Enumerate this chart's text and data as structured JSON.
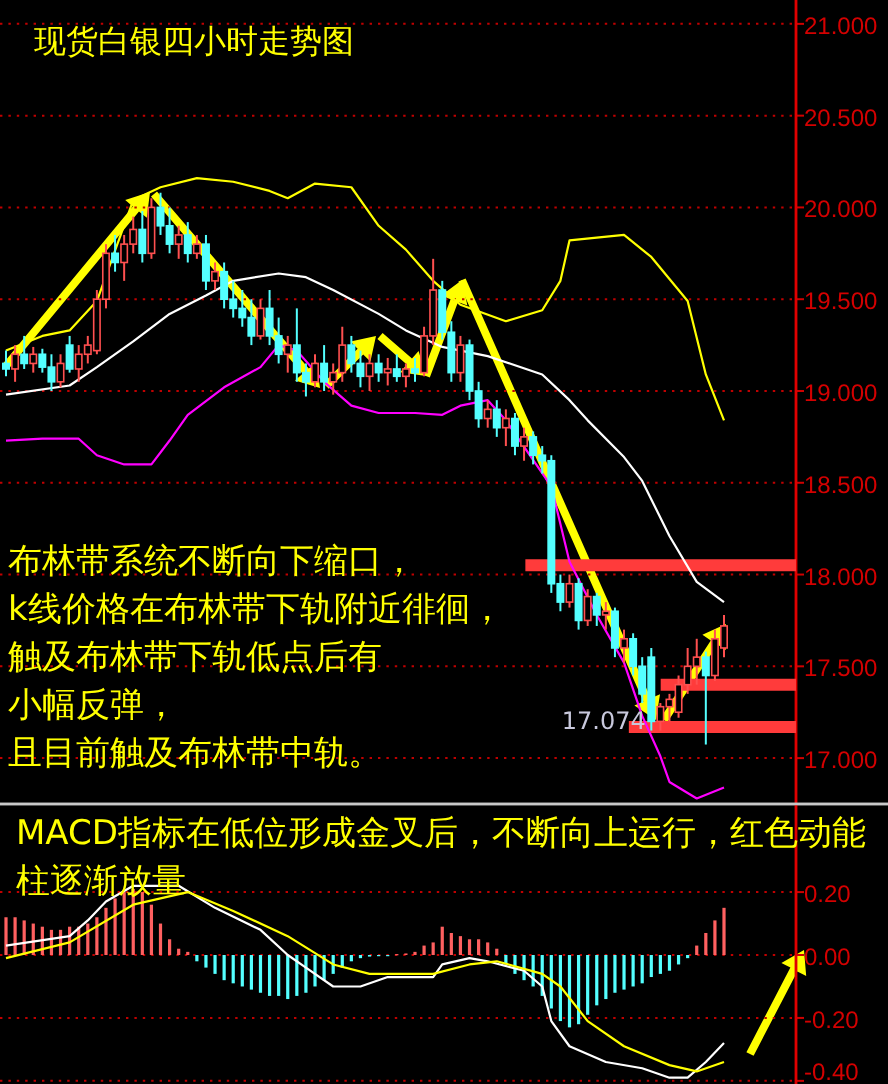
{
  "chart_data": [
    {
      "type": "candlestick",
      "title": "现货白银四小时走势图",
      "categories": [
        null,
        null,
        null,
        null,
        null,
        null,
        null,
        null,
        null,
        null,
        null,
        null,
        null,
        null,
        null,
        null,
        null,
        null,
        null,
        null,
        null,
        null,
        null,
        null,
        null,
        null,
        null,
        null,
        null,
        null,
        null,
        null,
        null,
        null,
        null,
        null,
        null,
        null,
        null,
        null,
        null,
        null,
        null,
        null,
        null,
        null,
        null,
        null,
        null,
        null,
        null,
        null,
        null,
        null,
        null,
        null,
        null,
        null,
        null,
        null,
        null,
        null,
        null,
        null,
        null,
        null,
        null,
        null,
        null,
        null,
        null,
        null,
        null,
        null,
        null,
        null,
        null,
        null,
        null,
        null
      ],
      "ohlc": [
        [
          19.15,
          19.22,
          19.08,
          19.12
        ],
        [
          19.12,
          19.25,
          19.05,
          19.2
        ],
        [
          19.2,
          19.3,
          19.12,
          19.15
        ],
        [
          19.15,
          19.24,
          19.1,
          19.2
        ],
        [
          19.2,
          19.23,
          19.1,
          19.13
        ],
        [
          19.13,
          19.2,
          19.0,
          19.05
        ],
        [
          19.05,
          19.2,
          19.02,
          19.15
        ],
        [
          19.25,
          19.3,
          19.1,
          19.12
        ],
        [
          19.12,
          19.25,
          19.05,
          19.2
        ],
        [
          19.2,
          19.3,
          19.15,
          19.25
        ],
        [
          19.22,
          19.55,
          19.2,
          19.5
        ],
        [
          19.5,
          19.8,
          19.45,
          19.75
        ],
        [
          19.75,
          19.85,
          19.65,
          19.7
        ],
        [
          19.7,
          19.85,
          19.6,
          19.8
        ],
        [
          19.8,
          19.95,
          19.75,
          19.88
        ],
        [
          19.88,
          19.98,
          19.7,
          19.75
        ],
        [
          19.75,
          20.05,
          19.72,
          20.0
        ],
        [
          20.0,
          20.08,
          19.85,
          19.9
        ],
        [
          19.9,
          20.0,
          19.75,
          19.8
        ],
        [
          19.8,
          19.9,
          19.72,
          19.85
        ],
        [
          19.85,
          19.92,
          19.7,
          19.75
        ],
        [
          19.75,
          19.85,
          19.72,
          19.8
        ],
        [
          19.8,
          19.85,
          19.55,
          19.6
        ],
        [
          19.6,
          19.7,
          19.55,
          19.65
        ],
        [
          19.65,
          19.7,
          19.45,
          19.5
        ],
        [
          19.5,
          19.6,
          19.4,
          19.45
        ],
        [
          19.45,
          19.55,
          19.35,
          19.4
        ],
        [
          19.4,
          19.5,
          19.25,
          19.3
        ],
        [
          19.3,
          19.5,
          19.28,
          19.45
        ],
        [
          19.45,
          19.55,
          19.25,
          19.3
        ],
        [
          19.3,
          19.4,
          19.15,
          19.2
        ],
        [
          19.2,
          19.3,
          19.1,
          19.25
        ],
        [
          19.25,
          19.45,
          19.05,
          19.1
        ],
        [
          19.1,
          19.15,
          18.97,
          19.05
        ],
        [
          19.05,
          19.2,
          19.02,
          19.15
        ],
        [
          19.15,
          19.25,
          19.0,
          19.05
        ],
        [
          19.05,
          19.15,
          18.98,
          19.1
        ],
        [
          19.1,
          19.35,
          19.05,
          19.25
        ],
        [
          19.25,
          19.3,
          19.1,
          19.15
        ],
        [
          19.15,
          19.22,
          19.02,
          19.08
        ],
        [
          19.08,
          19.2,
          19.0,
          19.15
        ],
        [
          19.15,
          19.2,
          19.05,
          19.1
        ],
        [
          19.1,
          19.18,
          19.03,
          19.12
        ],
        [
          19.12,
          19.2,
          19.05,
          19.08
        ],
        [
          19.08,
          19.15,
          19.02,
          19.12
        ],
        [
          19.12,
          19.18,
          19.05,
          19.1
        ],
        [
          19.1,
          19.35,
          19.08,
          19.3
        ],
        [
          19.3,
          19.72,
          19.25,
          19.55
        ],
        [
          19.55,
          19.6,
          19.28,
          19.32
        ],
        [
          19.32,
          19.38,
          19.05,
          19.1
        ],
        [
          19.1,
          19.3,
          19.05,
          19.25
        ],
        [
          19.25,
          19.28,
          18.95,
          19.0
        ],
        [
          19.0,
          19.05,
          18.8,
          18.85
        ],
        [
          18.85,
          18.95,
          18.8,
          18.9
        ],
        [
          18.9,
          18.95,
          18.75,
          18.8
        ],
        [
          18.8,
          18.9,
          18.7,
          18.85
        ],
        [
          18.85,
          18.88,
          18.65,
          18.7
        ],
        [
          18.7,
          18.8,
          18.62,
          18.75
        ],
        [
          18.75,
          18.78,
          18.6,
          18.65
        ],
        [
          18.65,
          18.7,
          18.55,
          18.62
        ],
        [
          18.62,
          18.65,
          17.9,
          17.95
        ],
        [
          17.95,
          18.0,
          17.8,
          17.85
        ],
        [
          17.85,
          18.0,
          17.82,
          17.95
        ],
        [
          17.95,
          17.98,
          17.7,
          17.75
        ],
        [
          17.75,
          17.92,
          17.72,
          17.88
        ],
        [
          17.88,
          17.9,
          17.72,
          17.78
        ],
        [
          17.78,
          17.85,
          17.7,
          17.8
        ],
        [
          17.8,
          17.82,
          17.55,
          17.6
        ],
        [
          17.6,
          17.7,
          17.52,
          17.65
        ],
        [
          17.65,
          17.68,
          17.45,
          17.5
        ],
        [
          17.5,
          17.55,
          17.3,
          17.35
        ],
        [
          17.55,
          17.6,
          17.15,
          17.2
        ],
        [
          17.2,
          17.3,
          17.15,
          17.28
        ],
        [
          17.28,
          17.35,
          17.2,
          17.32
        ],
        [
          17.25,
          17.45,
          17.22,
          17.4
        ],
        [
          17.4,
          17.6,
          17.35,
          17.5
        ],
        [
          17.5,
          17.65,
          17.4,
          17.55
        ],
        [
          17.55,
          17.58,
          17.074,
          17.45
        ],
        [
          17.45,
          17.7,
          17.42,
          17.65
        ],
        [
          17.6,
          17.78,
          17.55,
          17.72
        ]
      ],
      "series": [
        {
          "type": "line",
          "color": "#ffff00",
          "values": [
            19.22,
            null,
            null,
            null,
            19.3,
            null,
            null,
            19.33,
            null,
            null,
            19.49,
            null,
            null,
            null,
            20.04,
            null,
            null,
            20.11,
            null,
            null,
            null,
            20.16,
            null,
            null,
            null,
            20.14,
            null,
            null,
            null,
            20.09,
            null,
            20.05,
            null,
            null,
            20.13,
            null,
            null,
            null,
            20.11,
            null,
            null,
            19.9,
            null,
            null,
            19.77,
            null,
            null,
            19.6,
            null,
            null,
            19.47,
            null,
            null,
            null,
            null,
            19.38,
            null,
            null,
            null,
            19.44,
            null,
            19.6,
            19.82,
            null,
            null,
            null,
            null,
            null,
            19.85,
            null,
            null,
            19.73,
            null,
            null,
            null,
            19.49,
            null,
            19.09,
            null,
            18.84
          ]
        },
        {
          "type": "line",
          "color": "#ffffff",
          "values": [
            18.98,
            null,
            null,
            null,
            null,
            null,
            null,
            19.03,
            null,
            null,
            19.13,
            null,
            null,
            null,
            19.27,
            null,
            null,
            null,
            19.42,
            null,
            null,
            null,
            19.52,
            null,
            null,
            19.6,
            null,
            null,
            null,
            null,
            19.64,
            null,
            null,
            19.62,
            null,
            null,
            19.55,
            null,
            null,
            null,
            null,
            19.42,
            null,
            null,
            19.33,
            null,
            null,
            null,
            19.24,
            null,
            null,
            null,
            null,
            19.19,
            null,
            null,
            null,
            null,
            null,
            19.09,
            null,
            null,
            18.95,
            null,
            18.84,
            null,
            null,
            null,
            18.64,
            null,
            18.51,
            null,
            null,
            18.21,
            null,
            null,
            17.96,
            null,
            null,
            17.85
          ]
        },
        {
          "type": "line",
          "color": "#ff00ff",
          "values": [
            18.73,
            null,
            null,
            null,
            18.74,
            null,
            null,
            null,
            18.74,
            null,
            18.65,
            null,
            null,
            18.6,
            null,
            null,
            18.6,
            null,
            18.73,
            null,
            18.87,
            null,
            null,
            null,
            19.02,
            null,
            null,
            null,
            19.13,
            null,
            19.25,
            null,
            19.22,
            null,
            null,
            19.05,
            null,
            null,
            18.92,
            null,
            null,
            18.88,
            null,
            null,
            null,
            18.88,
            null,
            null,
            18.87,
            null,
            18.92,
            null,
            null,
            18.95,
            null,
            18.84,
            null,
            null,
            null,
            null,
            18.48,
            null,
            18.07,
            null,
            null,
            17.78,
            null,
            null,
            17.52,
            null,
            17.23,
            null,
            17.01,
            16.87,
            null,
            null,
            16.78,
            null,
            null,
            16.84
          ]
        }
      ],
      "ylim": [
        16.75,
        21.13
      ],
      "yticks": [
        {
          "value": 17,
          "label": "17.000"
        },
        {
          "value": 17.5,
          "label": "17.500"
        },
        {
          "value": 18,
          "label": "18.000"
        },
        {
          "value": 18.5,
          "label": "18.500"
        },
        {
          "value": 19,
          "label": "19.000"
        },
        {
          "value": 19.5,
          "label": "19.500"
        },
        {
          "value": 20,
          "label": "20.000"
        },
        {
          "value": 20.5,
          "label": "20.500"
        },
        {
          "value": 21,
          "label": "21.000"
        }
      ],
      "grid": "y",
      "tick_labels": "y",
      "ref_lines": [
        {
          "axis": "y",
          "value": 18.05,
          "color": "#ff3b3b"
        },
        {
          "axis": "y",
          "value": 17.4,
          "color": "#ff3b3b"
        },
        {
          "axis": "y",
          "value": 17.17,
          "color": "#ff3b3b"
        }
      ],
      "annotations": [
        "布林带系统不断向下缩口，",
        "k线价格在布林带下轨附近徘徊，",
        "触及布林带下轨低点后有",
        "小幅反弹，",
        "且目前触及布林带中轨。",
        "17.074"
      ]
    },
    {
      "type": "bar",
      "categories": [
        null,
        null,
        null,
        null,
        null,
        null,
        null,
        null,
        null,
        null,
        null,
        null,
        null,
        null,
        null,
        null,
        null,
        null,
        null,
        null,
        null,
        null,
        null,
        null,
        null,
        null,
        null,
        null,
        null,
        null,
        null,
        null,
        null,
        null,
        null,
        null,
        null,
        null,
        null,
        null,
        null,
        null,
        null,
        null,
        null,
        null,
        null,
        null,
        null,
        null,
        null,
        null,
        null,
        null,
        null,
        null,
        null,
        null,
        null,
        null,
        null,
        null,
        null,
        null,
        null,
        null,
        null,
        null,
        null,
        null,
        null,
        null,
        null,
        null,
        null,
        null,
        null,
        null,
        null,
        null
      ],
      "series": [
        {
          "type": "bar",
          "color": "#ff6060",
          "values": [
            0.12,
            0.12,
            0.11,
            0.1,
            0.09,
            0.08,
            0.08,
            0.09,
            0.09,
            0.1,
            0.12,
            0.15,
            0.18,
            0.2,
            0.21,
            0.2,
            0.16,
            0.1,
            0.05,
            0.02,
            0.01,
            null,
            null,
            null,
            null,
            null,
            null,
            null,
            null,
            null,
            null,
            null,
            null,
            null,
            null,
            null,
            null,
            null,
            null,
            null,
            null,
            null,
            null,
            0.003,
            0.005,
            0.01,
            0.03,
            0.04,
            0.09,
            0.07,
            0.06,
            0.05,
            0.05,
            0.04,
            0.02,
            null,
            null,
            null,
            null,
            null,
            null,
            null,
            null,
            null,
            null,
            null,
            null,
            null,
            null,
            null,
            null,
            null,
            null,
            null,
            null,
            null,
            0.03,
            0.07,
            0.11,
            0.15
          ]
        },
        {
          "type": "bar",
          "color": "#54ffff",
          "values": [
            null,
            null,
            null,
            null,
            null,
            null,
            null,
            null,
            null,
            null,
            null,
            null,
            null,
            null,
            null,
            null,
            null,
            null,
            null,
            null,
            null,
            -0.02,
            -0.04,
            -0.06,
            -0.08,
            -0.09,
            -0.1,
            -0.11,
            -0.12,
            -0.13,
            -0.13,
            -0.14,
            -0.13,
            -0.12,
            -0.1,
            -0.08,
            -0.06,
            -0.04,
            -0.02,
            -0.01,
            -0.005,
            -0.003,
            -0.002,
            null,
            null,
            null,
            null,
            null,
            null,
            null,
            null,
            null,
            null,
            null,
            null,
            -0.03,
            -0.06,
            -0.08,
            -0.1,
            -0.13,
            -0.17,
            -0.21,
            -0.23,
            -0.22,
            -0.19,
            -0.16,
            -0.14,
            -0.12,
            -0.11,
            -0.1,
            -0.09,
            -0.07,
            -0.06,
            -0.05,
            -0.03,
            -0.01,
            null,
            null,
            null,
            null
          ]
        },
        {
          "type": "line",
          "color": "#ffffff",
          "values": [
            0.03,
            null,
            null,
            null,
            null,
            null,
            null,
            0.06,
            null,
            0.11,
            null,
            0.17,
            null,
            null,
            0.22,
            null,
            null,
            null,
            null,
            0.22,
            null,
            null,
            null,
            0.15,
            null,
            null,
            null,
            null,
            0.08,
            null,
            null,
            0.0,
            null,
            -0.04,
            null,
            null,
            -0.1,
            null,
            null,
            -0.1,
            null,
            null,
            -0.07,
            null,
            null,
            null,
            null,
            -0.07,
            -0.03,
            null,
            null,
            -0.01,
            null,
            -0.02,
            null,
            null,
            null,
            -0.05,
            null,
            -0.1,
            -0.21,
            null,
            -0.29,
            null,
            null,
            null,
            -0.34,
            null,
            null,
            null,
            -0.36,
            null,
            null,
            -0.39,
            null,
            -0.39,
            null,
            -0.34,
            null,
            -0.28
          ]
        },
        {
          "type": "line",
          "color": "#ffff00",
          "values": [
            -0.01,
            null,
            null,
            null,
            null,
            null,
            null,
            0.04,
            null,
            null,
            null,
            null,
            null,
            null,
            0.16,
            null,
            null,
            null,
            null,
            null,
            0.2,
            null,
            null,
            null,
            null,
            0.14,
            null,
            null,
            null,
            null,
            null,
            0.06,
            null,
            null,
            null,
            null,
            -0.03,
            null,
            null,
            null,
            -0.06,
            null,
            null,
            null,
            null,
            null,
            null,
            -0.06,
            null,
            null,
            null,
            -0.03,
            null,
            null,
            -0.02,
            null,
            null,
            null,
            null,
            -0.06,
            null,
            -0.1,
            null,
            null,
            -0.21,
            null,
            null,
            null,
            -0.29,
            null,
            null,
            null,
            null,
            -0.35,
            null,
            null,
            -0.37,
            null,
            null,
            -0.34
          ]
        }
      ],
      "ylim": [
        -0.41,
        0.48
      ],
      "yticks": [
        {
          "value": 0.2,
          "label": "0.20"
        },
        {
          "value": 0,
          "label": "0.00"
        },
        {
          "value": -0.2,
          "label": "-0.20"
        },
        {
          "value": -0.4,
          "label": "-0.40"
        }
      ],
      "grid": "y",
      "tick_labels": "y",
      "annotations": [
        "MACD指标在低位形成金叉后，不断向上运行，红色动能柱逐渐放量"
      ]
    }
  ]
}
